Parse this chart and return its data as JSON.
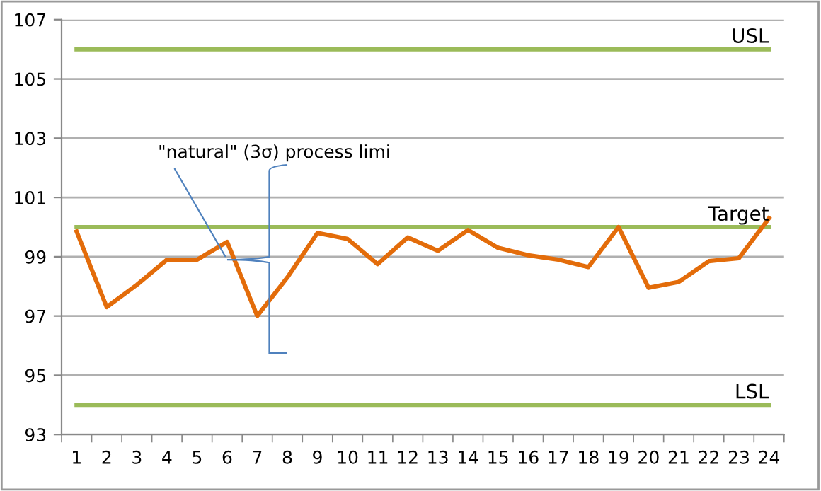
{
  "chart_data": {
    "type": "line",
    "categories": [
      "1",
      "2",
      "3",
      "4",
      "5",
      "6",
      "7",
      "8",
      "9",
      "10",
      "11",
      "12",
      "13",
      "14",
      "15",
      "16",
      "17",
      "18",
      "19",
      "20",
      "21",
      "22",
      "23",
      "24"
    ],
    "series": [
      {
        "color": "#e36c0a",
        "values": [
          99.85,
          97.3,
          98.05,
          98.9,
          98.9,
          99.5,
          97.0,
          98.3,
          99.8,
          99.6,
          98.75,
          99.65,
          99.2,
          99.9,
          99.3,
          99.05,
          98.9,
          98.65,
          100.0,
          97.95,
          98.15,
          98.85,
          98.95,
          100.3
        ]
      }
    ],
    "ylim": [
      93,
      107
    ],
    "yticks": [
      93,
      95,
      97,
      99,
      101,
      103,
      105,
      107
    ],
    "grid": "y",
    "marker": "none",
    "line_style": "solid",
    "ref_lines": [
      {
        "axis": "y",
        "value": 106,
        "label": "USL",
        "color": "#9bbb59"
      },
      {
        "axis": "y",
        "value": 100,
        "label": "Target",
        "color": "#9bbb59"
      },
      {
        "axis": "y",
        "value": 94,
        "label": "LSL",
        "color": "#9bbb59"
      }
    ],
    "annotations": [
      {
        "text": "\"natural\" (3σ) process limi",
        "x": "6",
        "y": 98.9
      }
    ]
  }
}
